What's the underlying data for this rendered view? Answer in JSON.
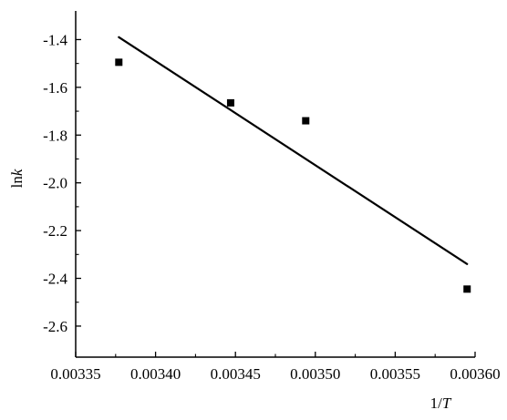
{
  "chart_data": {
    "type": "scatter",
    "title": "",
    "xlabel": {
      "prefix": "1/",
      "italic": "T"
    },
    "ylabel": {
      "prefix": "ln",
      "italic": "k"
    },
    "xlim": [
      0.00335,
      0.0036
    ],
    "ylim": [
      -2.73,
      -1.28
    ],
    "x_ticks": [
      0.00335,
      0.0034,
      0.00345,
      0.0035,
      0.00355,
      0.0036
    ],
    "x_tick_labels": [
      "0.00335",
      "0.00340",
      "0.00345",
      "0.00350",
      "0.00355",
      "0.00360"
    ],
    "y_ticks": [
      -1.4,
      -1.6,
      -1.8,
      -2.0,
      -2.2,
      -2.4,
      -2.6
    ],
    "y_tick_labels": [
      "-1.4",
      "-1.6",
      "-1.8",
      "-2.0",
      "-2.2",
      "-2.4",
      "-2.6"
    ],
    "grid": false,
    "series": [
      {
        "kind": "points",
        "marker": "square",
        "color": "#000000",
        "points": [
          {
            "x": 0.003377,
            "y": -1.495
          },
          {
            "x": 0.003447,
            "y": -1.665
          },
          {
            "x": 0.003494,
            "y": -1.74
          },
          {
            "x": 0.003595,
            "y": -2.445
          }
        ]
      },
      {
        "kind": "fit-line",
        "color": "#000000",
        "points": [
          {
            "x": 0.003377,
            "y": -1.39
          },
          {
            "x": 0.003595,
            "y": -2.34
          }
        ]
      }
    ]
  }
}
